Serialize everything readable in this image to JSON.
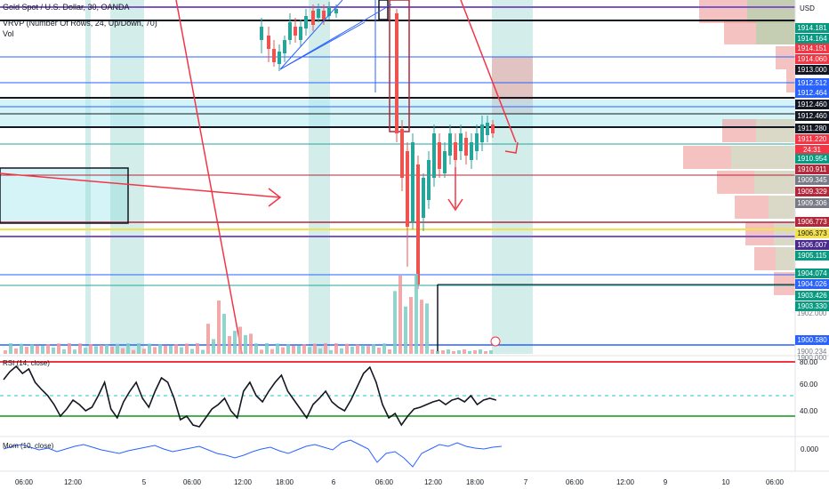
{
  "header": {
    "symbol": "Gold Spot / U.S. Dollar, 30, OANDA",
    "vrvp": "VRVP (Number Of Rows, 24, Up/Down, 70)",
    "volume": "Vol"
  },
  "price_axis": {
    "currency": "USD",
    "visible_ticks": [
      "1902.000",
      "1900.234",
      "1900.000"
    ]
  },
  "price_tags": [
    {
      "text": "1914.181",
      "color": "#089981"
    },
    {
      "text": "1914.164",
      "color": "#089981"
    },
    {
      "text": "1914.151",
      "color": "#f23645"
    },
    {
      "text": "1914.060",
      "color": "#f23645"
    },
    {
      "text": "1913.000",
      "color": "#131722"
    },
    {
      "text": "1912.512",
      "color": "#2962ff"
    },
    {
      "text": "1912.464",
      "color": "#2962ff"
    },
    {
      "text": "1912.460",
      "color": "#131722"
    },
    {
      "text": "1912.460",
      "color": "#131722"
    },
    {
      "text": "1911.280",
      "color": "#131722"
    },
    {
      "text": "1911.220",
      "color": "#f23645"
    },
    {
      "text": "24:31",
      "color": "#f23645"
    },
    {
      "text": "1910.954",
      "color": "#089981"
    },
    {
      "text": "1910.911",
      "color": "#b2283a"
    },
    {
      "text": "1909.345",
      "color": "#787b86"
    },
    {
      "text": "1909.329",
      "color": "#b2283a"
    },
    {
      "text": "1909.306",
      "color": "#787b86"
    },
    {
      "text": "1906.773",
      "color": "#b2283a"
    },
    {
      "text": "1906.373",
      "color": "#f2e14a"
    },
    {
      "text": "1906.007",
      "color": "#4a2a90"
    },
    {
      "text": "1905.115",
      "color": "#089981"
    },
    {
      "text": "1904.074",
      "color": "#089981"
    },
    {
      "text": "1904.026",
      "color": "#2962ff"
    },
    {
      "text": "1903.426",
      "color": "#089981"
    },
    {
      "text": "1903.330",
      "color": "#089981"
    },
    {
      "text": "1900.580",
      "color": "#2962ff"
    }
  ],
  "rsi": {
    "label": "RSI (14, close)",
    "ticks": [
      "80.00",
      "60.00",
      "40.00"
    ]
  },
  "mom": {
    "label": "Mom (10, close)",
    "tick": "0.000"
  },
  "time_axis": {
    "labels": [
      "06:00",
      "12:00",
      "5",
      "06:00",
      "12:00",
      "18:00",
      "6",
      "06:00",
      "12:00",
      "18:00",
      "7",
      "06:00",
      "12:00",
      "9",
      "10",
      "06:00"
    ]
  },
  "colors": {
    "up": "#26a69a",
    "down": "#ef5350",
    "rsi_line": "#131722",
    "rsi_upper": "#f23645",
    "rsi_lower": "#4caf50",
    "mom_line": "#2962ff",
    "annotation": "#f23645"
  }
}
